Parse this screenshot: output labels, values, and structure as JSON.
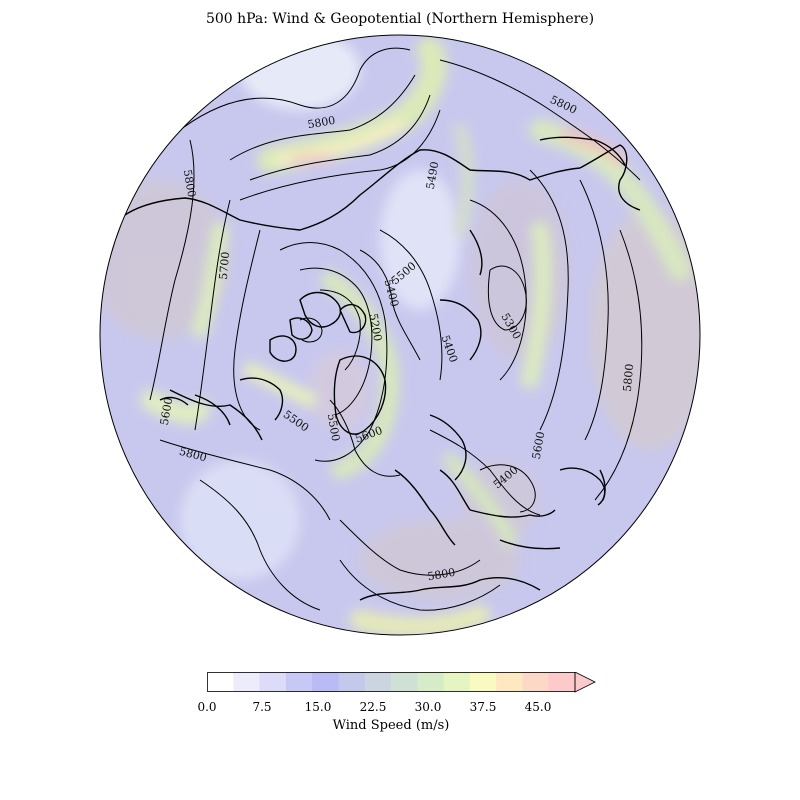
{
  "title": "500 hPa: Wind & Geopotential (Northern Hemisphere)",
  "colorbar": {
    "label": "Wind Speed (m/s)",
    "ticks": [
      "0.0",
      "7.5",
      "15.0",
      "22.5",
      "30.0",
      "37.5",
      "45.0"
    ],
    "min": 0,
    "max": 50,
    "extend": "max",
    "colors": [
      "#ffffff",
      "#ececfb",
      "#dcdcf8",
      "#c8c8f6",
      "#babaf4",
      "#c4c8ea",
      "#ccd4e0",
      "#cfe0d4",
      "#d6ecc8",
      "#e6f4c2",
      "#f8fac2",
      "#fde8c2",
      "#fcd8c6",
      "#fccaca"
    ]
  },
  "contour_labels": [
    "5800",
    "5800",
    "5800",
    "5700",
    "5490",
    "5500",
    "5400",
    "5300",
    "5200",
    "5400",
    "5600",
    "5500",
    "5500",
    "5600",
    "5800",
    "5600",
    "5400",
    "5800",
    "5800"
  ],
  "colors": {
    "coastline": "#000000",
    "contour": "#000000"
  }
}
